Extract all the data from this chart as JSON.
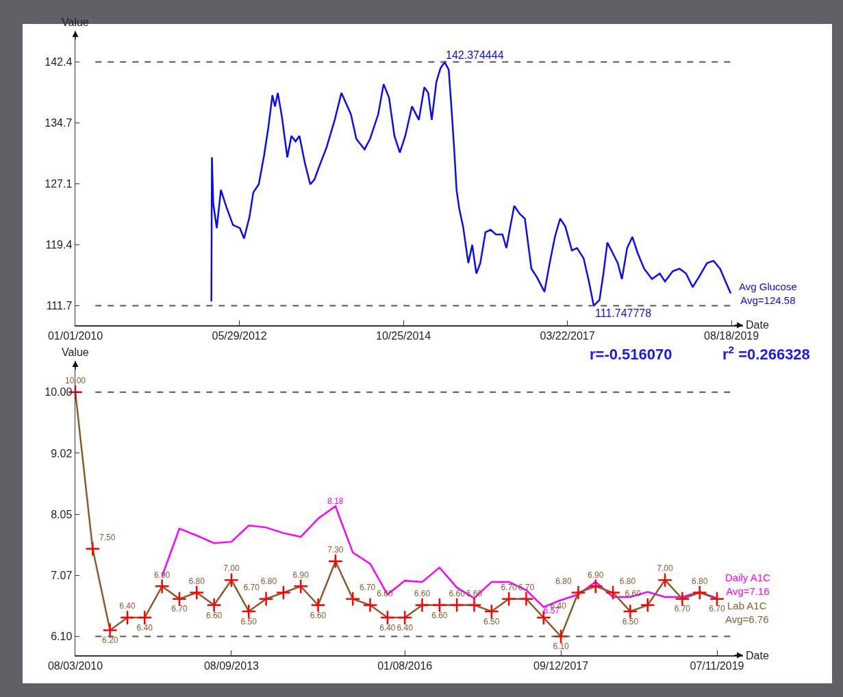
{
  "chart_data": [
    {
      "type": "line",
      "xlabel": "Date",
      "ylabel": "Value",
      "xlim": [
        "2010-01-01",
        "2019-10-19"
      ],
      "ylim": [
        109.3,
        146.3
      ],
      "xticks": [
        {
          "value": "2010-01-01",
          "label": "01/01/2010"
        },
        {
          "value": "2012-05-29",
          "label": "05/29/2012"
        },
        {
          "value": "2014-10-25",
          "label": "10/25/2014"
        },
        {
          "value": "2017-03-22",
          "label": "03/22/2017"
        },
        {
          "value": "2019-08-18",
          "label": "08/18/2019"
        }
      ],
      "yticks": [
        {
          "value": 111.747778,
          "label": "111.7"
        },
        {
          "value": 119.404445,
          "label": "119.4"
        },
        {
          "value": 127.061111,
          "label": "127.1"
        },
        {
          "value": 134.717778,
          "label": "134.7"
        },
        {
          "value": 142.374444,
          "label": "142.4"
        }
      ],
      "grid": false,
      "legend": false,
      "marker": "none",
      "ref_lines": [
        {
          "axis": "y",
          "value": 142.374444,
          "color": "#555555",
          "line_style": "dashed"
        },
        {
          "axis": "y",
          "value": 111.747778,
          "color": "#555555",
          "line_style": "dashed"
        }
      ],
      "annotations": [
        {
          "text": "142.374444",
          "x": "2015-06-03",
          "y": 142.374444
        },
        {
          "text": "111.747778",
          "x": "2017-08-10",
          "y": 111.747778
        }
      ],
      "series": [
        {
          "name": "Avg Glucose\nAvg=124.58",
          "color": "#0a0aff",
          "x": [
            "2011-12-31",
            "2012-01-03",
            "2012-01-10",
            "2012-01-29",
            "2012-02-20",
            "2012-03-20",
            "2012-04-25",
            "2012-06-01",
            "2012-06-23",
            "2012-07-22",
            "2012-08-12",
            "2012-09-10",
            "2012-10-09",
            "2012-10-31",
            "2012-11-22",
            "2012-12-06",
            "2012-12-21",
            "2013-01-12",
            "2013-02-10",
            "2013-03-04",
            "2013-03-26",
            "2013-04-16",
            "2013-05-15",
            "2013-06-13",
            "2013-07-05",
            "2013-07-27",
            "2013-09-09",
            "2013-10-22",
            "2013-11-27",
            "2014-01-17",
            "2014-02-15",
            "2014-03-31",
            "2014-04-29",
            "2014-06-12",
            "2014-07-11",
            "2014-08-09",
            "2014-09-07",
            "2014-10-06",
            "2014-11-04",
            "2014-12-10",
            "2015-01-16",
            "2015-02-14",
            "2015-03-07",
            "2015-03-26",
            "2015-04-20",
            "2015-05-12",
            "2015-06-03",
            "2015-06-25",
            "2015-07-09",
            "2015-07-23",
            "2015-08-06",
            "2015-08-20",
            "2015-09-10",
            "2015-10-08",
            "2015-10-29",
            "2015-11-20",
            "2015-12-11",
            "2016-01-08",
            "2016-02-05",
            "2016-03-04",
            "2016-04-08",
            "2016-04-29",
            "2016-05-20",
            "2016-06-10",
            "2016-07-09",
            "2016-08-06",
            "2016-09-10",
            "2016-10-08",
            "2016-11-19",
            "2016-12-17",
            "2017-01-14",
            "2017-02-11",
            "2017-03-11",
            "2017-04-15",
            "2017-05-13",
            "2017-06-17",
            "2017-07-15",
            "2017-08-10",
            "2017-09-10",
            "2017-10-01",
            "2017-10-22",
            "2017-11-19",
            "2017-12-17",
            "2018-01-08",
            "2018-02-05",
            "2018-03-05",
            "2018-04-02",
            "2018-05-07",
            "2018-06-18",
            "2018-07-30",
            "2018-08-27",
            "2018-10-08",
            "2018-11-13",
            "2018-12-18",
            "2019-01-22",
            "2019-02-26",
            "2019-04-09",
            "2019-05-14",
            "2019-06-18",
            "2019-07-17",
            "2019-08-14"
          ],
          "values": [
            112.3,
            130.4,
            124.6,
            121.5,
            126.3,
            124.2,
            121.9,
            121.5,
            120.2,
            122.9,
            126.0,
            127.0,
            130.7,
            134.1,
            138.2,
            136.8,
            138.5,
            135.5,
            130.4,
            133.1,
            132.4,
            133.1,
            129.7,
            127.0,
            127.6,
            129.0,
            131.7,
            135.1,
            138.5,
            135.8,
            132.7,
            131.4,
            132.7,
            135.8,
            139.6,
            137.9,
            133.1,
            131.0,
            133.1,
            136.8,
            135.1,
            139.2,
            138.5,
            135.1,
            139.9,
            141.6,
            142.374444,
            141.4,
            136.8,
            131.9,
            126.3,
            124.0,
            121.7,
            117.1,
            119.4,
            115.8,
            117.1,
            121.0,
            121.3,
            120.7,
            120.7,
            119.0,
            121.7,
            124.3,
            123.3,
            122.7,
            116.4,
            115.4,
            113.5,
            117.1,
            120.4,
            122.7,
            121.7,
            118.7,
            119.0,
            117.7,
            114.8,
            111.747778,
            112.5,
            115.8,
            119.7,
            118.4,
            117.1,
            115.1,
            119.0,
            120.4,
            118.4,
            116.4,
            115.1,
            115.8,
            114.8,
            116.1,
            116.4,
            115.8,
            114.1,
            115.4,
            117.1,
            117.4,
            116.4,
            114.8,
            113.3
          ]
        }
      ]
    },
    {
      "type": "line",
      "xlabel": "Date",
      "ylabel": "Value",
      "categories": [
        "08/03/2010",
        null,
        null,
        null,
        null,
        null,
        null,
        null,
        null,
        "08/09/2013",
        null,
        null,
        null,
        null,
        null,
        null,
        null,
        null,
        null,
        "01/08/2016",
        null,
        null,
        null,
        null,
        null,
        null,
        null,
        null,
        "09/12/2017",
        null,
        null,
        null,
        null,
        null,
        null,
        null,
        null,
        "07/11/2019"
      ],
      "ylim": [
        5.8,
        10.5
      ],
      "yticks": [
        {
          "value": 6.1,
          "label": "6.10"
        },
        {
          "value": 7.075,
          "label": "7.07"
        },
        {
          "value": 8.05,
          "label": "8.05"
        },
        {
          "value": 9.025,
          "label": "9.02"
        },
        {
          "value": 10.0,
          "label": "10.00"
        }
      ],
      "grid": false,
      "legend": false,
      "ref_lines": [
        {
          "axis": "y",
          "value": 10.0,
          "color": "#555555",
          "line_style": "dashed"
        },
        {
          "axis": "y",
          "value": 6.1,
          "color": "#555555",
          "line_style": "dashed"
        }
      ],
      "annotations": [
        "r=-0.516070",
        "r$^{2}$ =0.266328"
      ],
      "series": [
        {
          "name": "Daily A1C\nAvg=7.16",
          "color": "#ff00ff",
          "marker": "none",
          "values": [
            null,
            null,
            null,
            null,
            null,
            7.06,
            7.82,
            7.71,
            7.59,
            7.61,
            7.87,
            7.84,
            7.75,
            7.69,
            7.98,
            8.18,
            7.44,
            7.26,
            6.77,
            6.99,
            6.97,
            7.2,
            6.88,
            6.71,
            6.97,
            6.97,
            6.84,
            6.57,
            6.68,
            6.77,
            6.97,
            6.73,
            6.73,
            6.81,
            6.73,
            6.73,
            6.81,
            6.71
          ],
          "value_labels": [
            null,
            null,
            null,
            null,
            null,
            null,
            null,
            null,
            null,
            null,
            null,
            null,
            null,
            null,
            null,
            "8.18",
            null,
            null,
            null,
            null,
            null,
            null,
            null,
            null,
            null,
            null,
            null,
            "6.57",
            null,
            null,
            null,
            null,
            null,
            null,
            null,
            null,
            null,
            null
          ]
        },
        {
          "name": "Lab A1C\nAvg=6.76",
          "color": "#8b5a2b",
          "marker": "cross",
          "colors": [
            "#ff0000",
            "#ff0000",
            "#ff0000",
            "#ff0000",
            "#ff0000",
            "#ff0000",
            "#ff0000",
            "#ff0000",
            "#ff0000",
            "#ff0000",
            "#ff0000",
            "#ff0000",
            "#ff0000",
            "#ff0000",
            "#ff0000",
            "#ff0000",
            "#ff0000",
            "#ff0000",
            "#ff0000",
            "#ff0000",
            "#ff0000",
            "#ff0000",
            "#ff0000",
            "#ff0000",
            "#ff0000",
            "#ff0000",
            "#ff0000",
            "#ff0000",
            "#ff0000",
            "#ff0000",
            "#ff0000",
            "#ff0000",
            "#ff0000",
            "#ff0000",
            "#ff0000",
            "#ff0000",
            "#ff0000",
            "#ff0000"
          ],
          "values": [
            10.0,
            7.5,
            6.2,
            6.4,
            6.4,
            6.9,
            6.7,
            6.8,
            6.6,
            7.0,
            6.5,
            6.7,
            6.8,
            6.9,
            6.6,
            7.3,
            6.7,
            6.6,
            6.4,
            6.4,
            6.6,
            6.6,
            6.6,
            6.6,
            6.5,
            6.7,
            6.7,
            6.4,
            6.1,
            6.8,
            6.9,
            6.8,
            6.5,
            6.6,
            7.0,
            6.7,
            6.8,
            6.7
          ],
          "value_labels": [
            "10.00",
            "7.50",
            "6.20",
            "6.40",
            "6.40",
            "6.90",
            "6.70",
            "6.80",
            "6.60",
            "7.00",
            "6.50",
            "6.70",
            "6.80",
            "6.90",
            "6.60",
            "7.30",
            "6.70",
            "6.60",
            "6.40",
            "6.40",
            "6.60",
            "6.60",
            "6.60",
            "6.60",
            "6.50",
            "6.70",
            "6.70",
            "6.40",
            "6.10",
            "6.80",
            "6.90",
            "6.80",
            "6.50",
            "6.60",
            "7.00",
            "6.70",
            "6.80",
            "6.70"
          ]
        }
      ]
    }
  ]
}
